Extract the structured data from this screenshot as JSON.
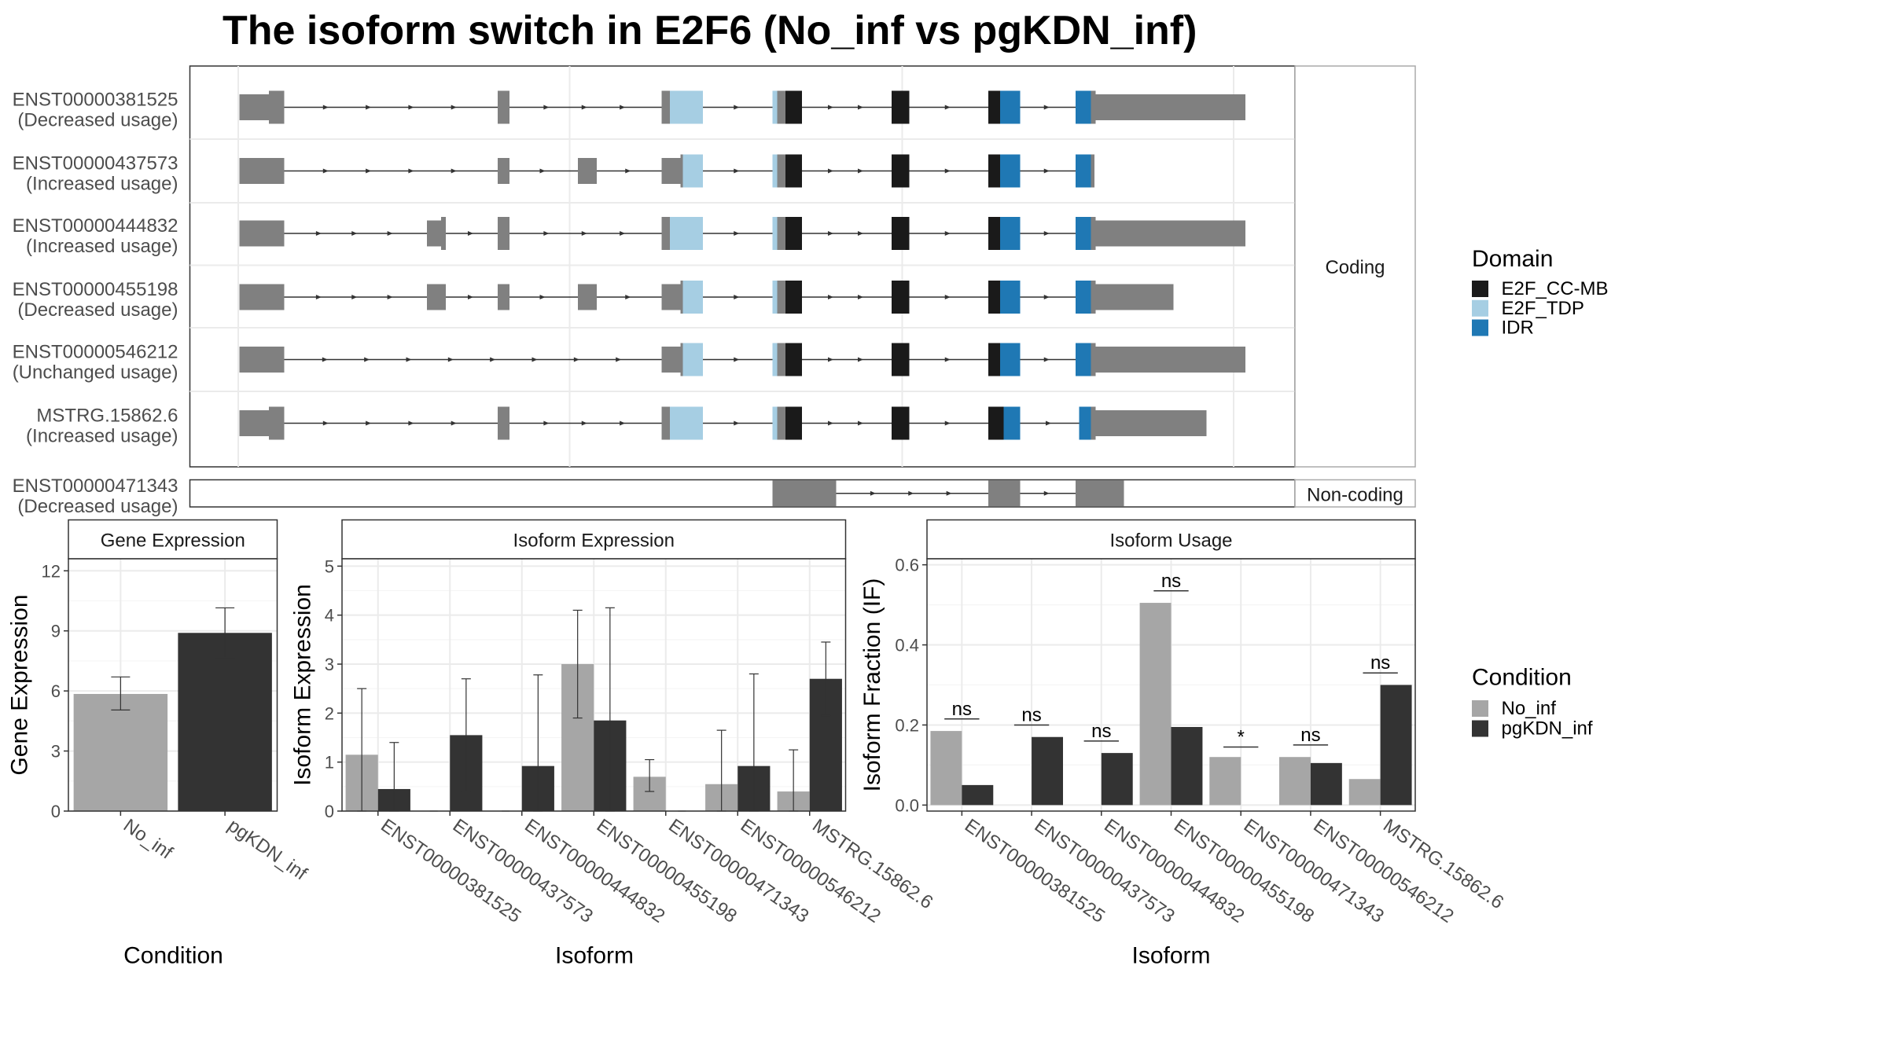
{
  "title": "The isoform switch in E2F6 (No_inf vs pgKDN_inf)",
  "colors": {
    "exon": "#808080",
    "E2F_CC-MB": "#1a1a1a",
    "E2F_TDP": "#a6cee3",
    "IDR": "#1f78b4",
    "No_inf": "#a6a6a6",
    "pgKDN_inf": "#333333",
    "grid": "#ebebeb",
    "panel_border": "#333333",
    "strip_border": "#aaaaaa"
  },
  "structure": {
    "coding_label": "Coding",
    "noncoding_label": "Non-coding",
    "transcripts": [
      {
        "id": "ENST00000381525",
        "usage": "(Decreased usage)",
        "group": "coding",
        "segments": [
          [
            203,
            228,
            "thin",
            "exon"
          ],
          [
            228,
            241,
            "thick",
            "exon"
          ],
          [
            422,
            432,
            "thick",
            "exon"
          ],
          [
            561,
            568,
            "thick",
            "exon"
          ],
          [
            568,
            596,
            "thick",
            "E2F_TDP"
          ],
          [
            655,
            659,
            "thick",
            "E2F_TDP"
          ],
          [
            659,
            666,
            "thick",
            "exon"
          ],
          [
            666,
            680,
            "thick",
            "E2F_CC-MB"
          ],
          [
            756,
            771,
            "thick",
            "E2F_CC-MB"
          ],
          [
            838,
            848,
            "thick",
            "E2F_CC-MB"
          ],
          [
            848,
            865,
            "thick",
            "IDR"
          ],
          [
            912,
            925,
            "thick",
            "IDR"
          ],
          [
            925,
            929,
            "thick",
            "exon"
          ],
          [
            929,
            1056,
            "thin",
            "exon"
          ]
        ]
      },
      {
        "id": "ENST00000437573",
        "usage": "(Increased usage)",
        "group": "coding",
        "segments": [
          [
            203,
            241,
            "thin",
            "exon"
          ],
          [
            422,
            432,
            "thin",
            "exon"
          ],
          [
            490,
            506,
            "thin",
            "exon"
          ],
          [
            561,
            577,
            "thin",
            "exon"
          ],
          [
            577,
            579,
            "thick",
            "exon"
          ],
          [
            579,
            596,
            "thick",
            "E2F_TDP"
          ],
          [
            655,
            659,
            "thick",
            "E2F_TDP"
          ],
          [
            659,
            666,
            "thick",
            "exon"
          ],
          [
            666,
            680,
            "thick",
            "E2F_CC-MB"
          ],
          [
            756,
            771,
            "thick",
            "E2F_CC-MB"
          ],
          [
            838,
            848,
            "thick",
            "E2F_CC-MB"
          ],
          [
            848,
            865,
            "thick",
            "IDR"
          ],
          [
            912,
            925,
            "thick",
            "IDR"
          ],
          [
            925,
            928,
            "thick",
            "exon"
          ]
        ]
      },
      {
        "id": "ENST00000444832",
        "usage": "(Increased usage)",
        "group": "coding",
        "segments": [
          [
            203,
            241,
            "thin",
            "exon"
          ],
          [
            362,
            374,
            "thin",
            "exon"
          ],
          [
            374,
            378,
            "thick",
            "exon"
          ],
          [
            422,
            432,
            "thick",
            "exon"
          ],
          [
            561,
            568,
            "thick",
            "exon"
          ],
          [
            568,
            596,
            "thick",
            "E2F_TDP"
          ],
          [
            655,
            659,
            "thick",
            "E2F_TDP"
          ],
          [
            659,
            666,
            "thick",
            "exon"
          ],
          [
            666,
            680,
            "thick",
            "E2F_CC-MB"
          ],
          [
            756,
            771,
            "thick",
            "E2F_CC-MB"
          ],
          [
            838,
            848,
            "thick",
            "E2F_CC-MB"
          ],
          [
            848,
            865,
            "thick",
            "IDR"
          ],
          [
            912,
            925,
            "thick",
            "IDR"
          ],
          [
            925,
            929,
            "thick",
            "exon"
          ],
          [
            929,
            1056,
            "thin",
            "exon"
          ]
        ]
      },
      {
        "id": "ENST00000455198",
        "usage": "(Decreased usage)",
        "group": "coding",
        "segments": [
          [
            203,
            241,
            "thin",
            "exon"
          ],
          [
            362,
            378,
            "thin",
            "exon"
          ],
          [
            422,
            432,
            "thin",
            "exon"
          ],
          [
            490,
            506,
            "thin",
            "exon"
          ],
          [
            561,
            577,
            "thin",
            "exon"
          ],
          [
            577,
            579,
            "thick",
            "exon"
          ],
          [
            579,
            596,
            "thick",
            "E2F_TDP"
          ],
          [
            655,
            659,
            "thick",
            "E2F_TDP"
          ],
          [
            659,
            666,
            "thick",
            "exon"
          ],
          [
            666,
            680,
            "thick",
            "E2F_CC-MB"
          ],
          [
            756,
            771,
            "thick",
            "E2F_CC-MB"
          ],
          [
            838,
            848,
            "thick",
            "E2F_CC-MB"
          ],
          [
            848,
            865,
            "thick",
            "IDR"
          ],
          [
            912,
            925,
            "thick",
            "IDR"
          ],
          [
            925,
            929,
            "thick",
            "exon"
          ],
          [
            929,
            995,
            "thin",
            "exon"
          ]
        ]
      },
      {
        "id": "ENST00000546212",
        "usage": "(Unchanged usage)",
        "group": "coding",
        "segments": [
          [
            203,
            241,
            "thin",
            "exon"
          ],
          [
            561,
            577,
            "thin",
            "exon"
          ],
          [
            577,
            579,
            "thick",
            "exon"
          ],
          [
            579,
            596,
            "thick",
            "E2F_TDP"
          ],
          [
            655,
            659,
            "thick",
            "E2F_TDP"
          ],
          [
            659,
            666,
            "thick",
            "exon"
          ],
          [
            666,
            680,
            "thick",
            "E2F_CC-MB"
          ],
          [
            756,
            771,
            "thick",
            "E2F_CC-MB"
          ],
          [
            838,
            848,
            "thick",
            "E2F_CC-MB"
          ],
          [
            848,
            865,
            "thick",
            "IDR"
          ],
          [
            912,
            925,
            "thick",
            "IDR"
          ],
          [
            925,
            929,
            "thick",
            "exon"
          ],
          [
            929,
            1056,
            "thin",
            "exon"
          ]
        ]
      },
      {
        "id": "MSTRG.15862.6",
        "usage": "(Increased usage)",
        "group": "coding",
        "segments": [
          [
            203,
            228,
            "thin",
            "exon"
          ],
          [
            228,
            241,
            "thick",
            "exon"
          ],
          [
            422,
            432,
            "thick",
            "exon"
          ],
          [
            561,
            568,
            "thick",
            "exon"
          ],
          [
            568,
            596,
            "thick",
            "E2F_TDP"
          ],
          [
            655,
            659,
            "thick",
            "E2F_TDP"
          ],
          [
            659,
            666,
            "thick",
            "exon"
          ],
          [
            666,
            680,
            "thick",
            "E2F_CC-MB"
          ],
          [
            756,
            771,
            "thick",
            "E2F_CC-MB"
          ],
          [
            838,
            851,
            "thick",
            "E2F_CC-MB"
          ],
          [
            851,
            865,
            "thick",
            "IDR"
          ],
          [
            915,
            925,
            "thick",
            "IDR"
          ],
          [
            925,
            929,
            "thick",
            "exon"
          ],
          [
            929,
            1023,
            "thin",
            "exon"
          ]
        ]
      },
      {
        "id": "ENST00000471343",
        "usage": "(Decreased usage)",
        "group": "noncoding",
        "segments": [
          [
            655,
            709,
            "thin",
            "exon"
          ],
          [
            838,
            865,
            "thin",
            "exon"
          ],
          [
            912,
            953,
            "thin",
            "exon"
          ]
        ]
      }
    ]
  },
  "legend_domain": {
    "title": "Domain",
    "items": [
      "E2F_CC-MB",
      "E2F_TDP",
      "IDR"
    ]
  },
  "legend_condition": {
    "title": "Condition",
    "items": [
      "No_inf",
      "pgKDN_inf"
    ]
  },
  "chart_data": [
    {
      "type": "bar",
      "strip": "Gene Expression",
      "ylabel": "Gene Expression",
      "xlabel": "Condition",
      "ylim": [
        0,
        12.6
      ],
      "yticks": [
        0,
        3,
        6,
        9,
        12
      ],
      "categories": [
        "No_inf",
        "pgKDN_inf"
      ],
      "values": [
        5.85,
        8.9
      ],
      "err_low": [
        5.05,
        7.65
      ],
      "err_high": [
        6.7,
        10.15
      ]
    },
    {
      "type": "bar",
      "strip": "Isoform Expression",
      "ylabel": "Isoform Expression",
      "xlabel": "Isoform",
      "ylim": [
        0,
        5.15
      ],
      "yticks": [
        0,
        1,
        2,
        3,
        4,
        5
      ],
      "categories": [
        "ENST00000381525",
        "ENST00000437573",
        "ENST00000444832",
        "ENST00000455198",
        "ENST00000471343",
        "ENST00000546212",
        "MSTRG.15862.6"
      ],
      "series": [
        {
          "name": "No_inf",
          "values": [
            1.15,
            0,
            0,
            3.0,
            0.7,
            0.55,
            0.4
          ],
          "err_low": [
            0,
            0,
            0,
            1.9,
            0.4,
            0,
            0
          ],
          "err_high": [
            2.5,
            0,
            0,
            4.1,
            1.05,
            1.65,
            1.25
          ]
        },
        {
          "name": "pgKDN_inf",
          "values": [
            0.45,
            1.55,
            0.92,
            1.85,
            0,
            0.92,
            2.7
          ],
          "err_low": [
            0,
            0.4,
            0,
            0,
            0,
            0,
            1.95
          ],
          "err_high": [
            1.4,
            2.7,
            2.78,
            4.15,
            0,
            2.8,
            3.45
          ]
        }
      ]
    },
    {
      "type": "bar",
      "strip": "Isoform Usage",
      "ylabel": "Isoform Fraction (IF)",
      "xlabel": "Isoform",
      "ylim": [
        -0.015,
        0.615
      ],
      "yticks": [
        0.0,
        0.2,
        0.4,
        0.6
      ],
      "ytick_labels": [
        "0.0",
        "0.2",
        "0.4",
        "0.6"
      ],
      "categories": [
        "ENST00000381525",
        "ENST00000437573",
        "ENST00000444832",
        "ENST00000455198",
        "ENST00000471343",
        "ENST00000546212",
        "MSTRG.15862.6"
      ],
      "series": [
        {
          "name": "No_inf",
          "values": [
            0.185,
            0.0,
            0.0,
            0.505,
            0.12,
            0.12,
            0.065
          ]
        },
        {
          "name": "pgKDN_inf",
          "values": [
            0.05,
            0.17,
            0.13,
            0.195,
            0.0,
            0.105,
            0.3
          ]
        }
      ],
      "significance": [
        {
          "label": "ns",
          "y": 0.215
        },
        {
          "label": "ns",
          "y": 0.2
        },
        {
          "label": "ns",
          "y": 0.16
        },
        {
          "label": "ns",
          "y": 0.535
        },
        {
          "label": "*",
          "y": 0.145
        },
        {
          "label": "ns",
          "y": 0.15
        },
        {
          "label": "ns",
          "y": 0.33
        }
      ]
    }
  ]
}
